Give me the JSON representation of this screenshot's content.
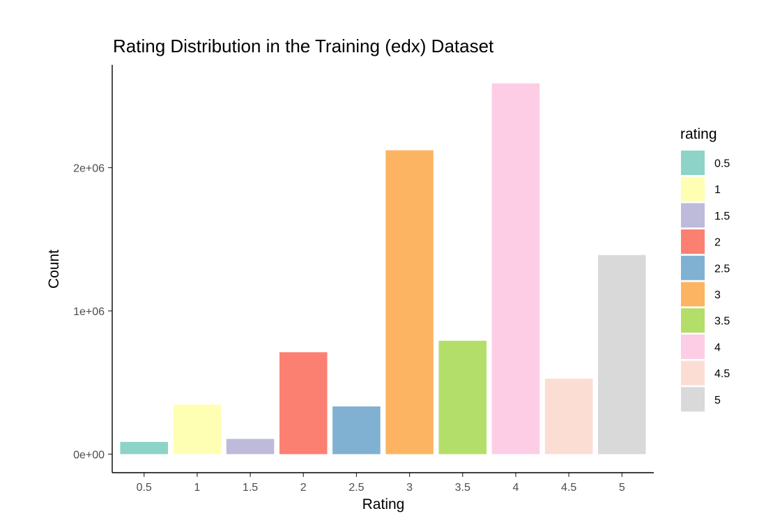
{
  "chart_data": {
    "type": "bar",
    "title": "Rating Distribution in the Training (edx) Dataset",
    "xlabel": "Rating",
    "ylabel": "Count",
    "categories": [
      "0.5",
      "1",
      "1.5",
      "2",
      "2.5",
      "3",
      "3.5",
      "4",
      "4.5",
      "5"
    ],
    "values": [
      85374,
      345679,
      106426,
      711422,
      333010,
      2121240,
      791624,
      2588430,
      526736,
      1390114
    ],
    "colors": [
      "#8DD3C7",
      "#FFFFB3",
      "#BEBADA",
      "#FB8072",
      "#80B1D3",
      "#FDB462",
      "#B3DE69",
      "#FCCDE5",
      "#FCDDD3",
      "#D9D9D9"
    ],
    "y_ticks": [
      0,
      1000000,
      2000000
    ],
    "y_tick_labels": [
      "0e+00",
      "1e+06",
      "2e+06"
    ],
    "ylim": [
      -129422,
      2717852
    ],
    "grid": false,
    "legend": {
      "title": "rating",
      "placement": "right",
      "entries": [
        "0.5",
        "1",
        "1.5",
        "2",
        "2.5",
        "3",
        "3.5",
        "4",
        "4.5",
        "5"
      ]
    }
  }
}
